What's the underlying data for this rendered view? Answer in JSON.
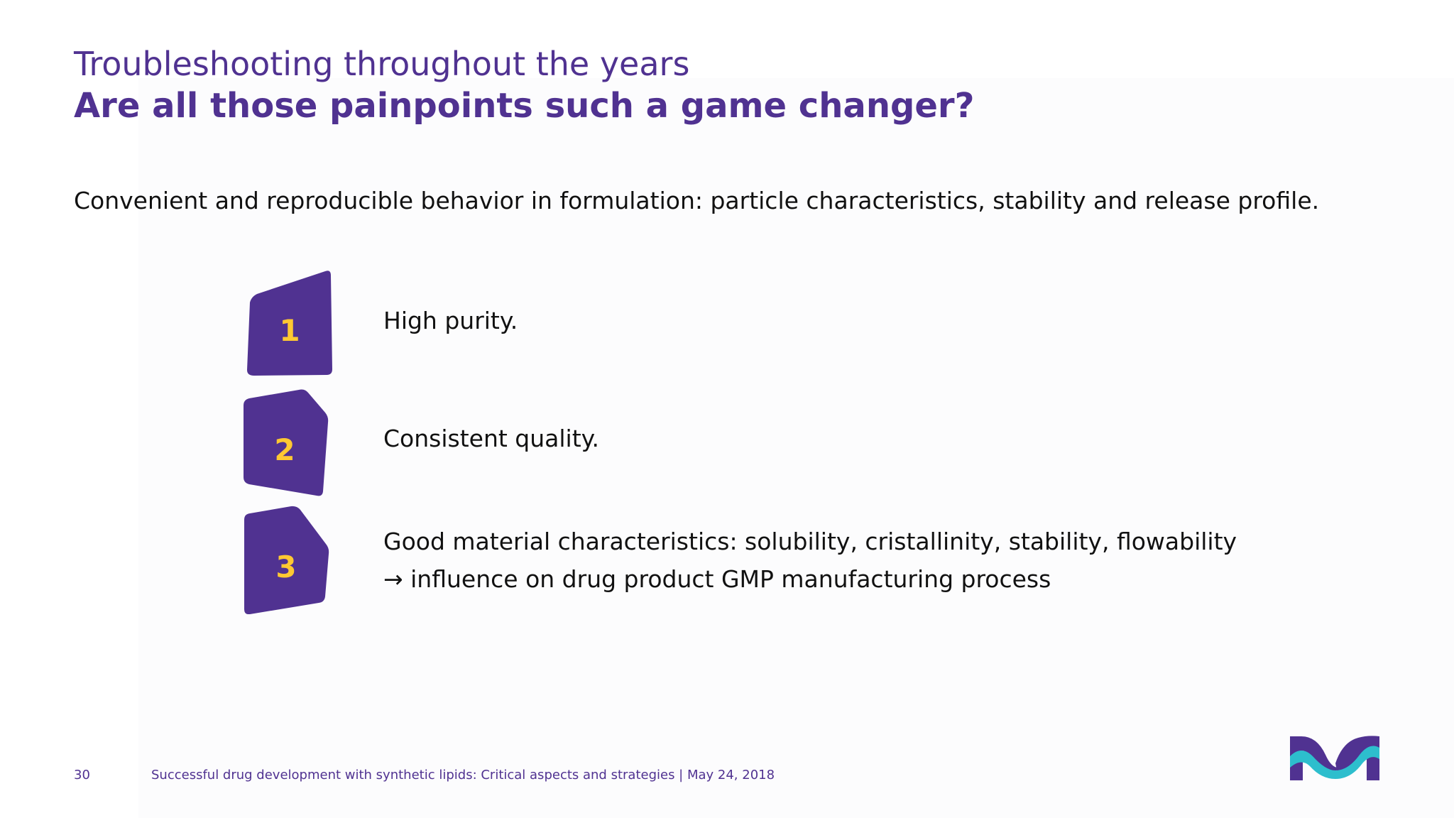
{
  "slide": {
    "title_line1": "Troubleshooting throughout the years",
    "title_line2": "Are all those painpoints such a game changer?",
    "intro": "Convenient and reproducible behavior in formulation: particle characteristics, stability and release profile.",
    "items": [
      {
        "number": "1",
        "lines": [
          "High purity."
        ]
      },
      {
        "number": "2",
        "lines": [
          "Consistent quality."
        ]
      },
      {
        "number": "3",
        "lines": [
          "Good material characteristics: solubility, cristallinity, stability, flowability",
          "→ influence on drug product GMP manufacturing process"
        ]
      }
    ]
  },
  "footer": {
    "page_number": "30",
    "text": "Successful drug development with synthetic lipids: Critical aspects and strategies | May 24, 2018"
  },
  "colors": {
    "brand_purple": "#503291",
    "badge_number_yellow": "#FFC832",
    "logo_teal": "#2DBECD"
  },
  "icons": {
    "logo": "merck-logo-icon"
  }
}
